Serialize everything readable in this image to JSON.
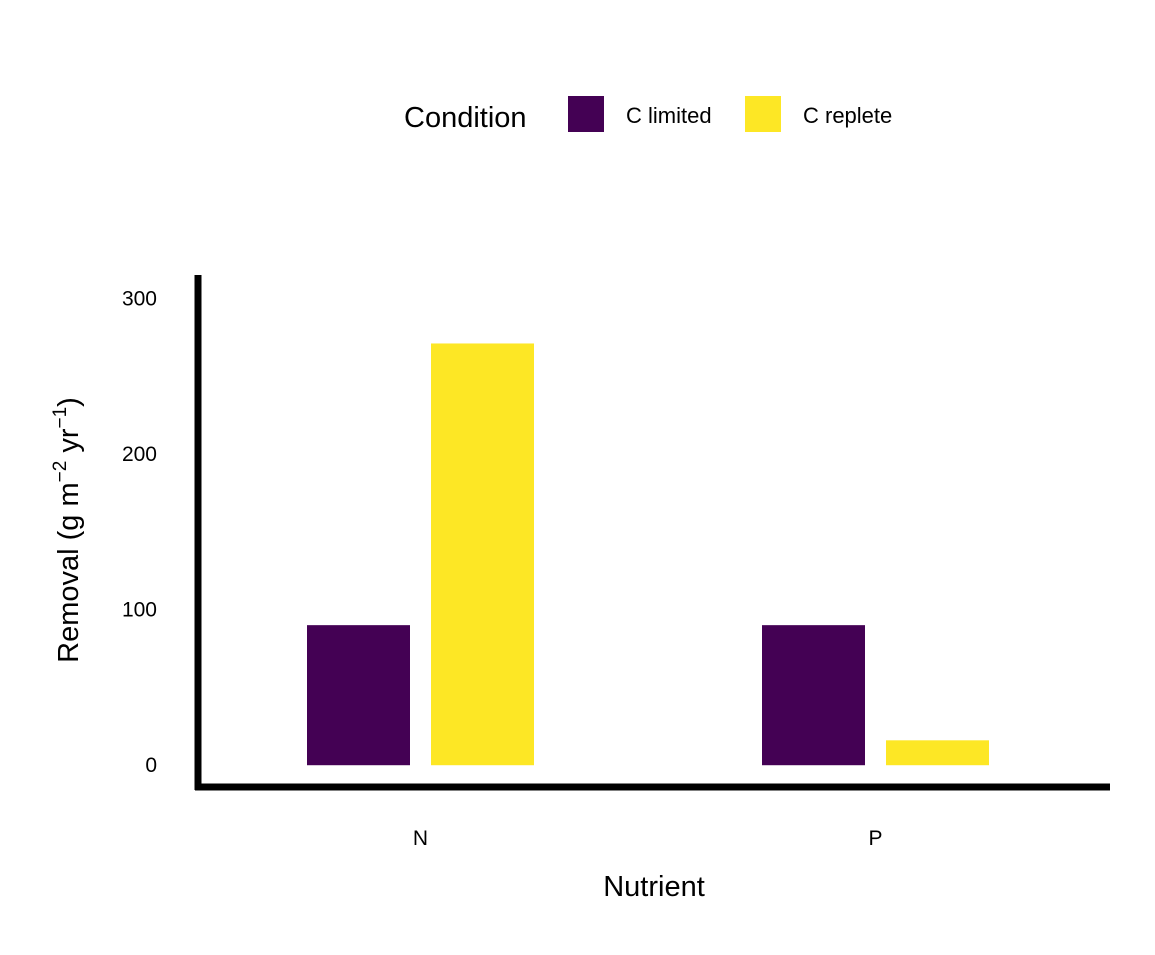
{
  "chart_data": {
    "type": "bar",
    "title": "",
    "xlabel": "Nutrient",
    "ylabel": {
      "text": "Removal (g m",
      "exp1": "−2",
      "mid": " yr",
      "exp2": "−1",
      "close": ")"
    },
    "categories": [
      "N",
      "P"
    ],
    "series": [
      {
        "name": "C limited",
        "values": [
          90,
          90
        ],
        "color": "#440154"
      },
      {
        "name": "C replete",
        "values": [
          271,
          16
        ],
        "color": "#FDE725"
      }
    ],
    "ylim": [
      -14,
      315
    ],
    "yticks": [
      0,
      100,
      200,
      300
    ],
    "grid": false,
    "legend": {
      "title": "Condition",
      "position": "top"
    }
  }
}
